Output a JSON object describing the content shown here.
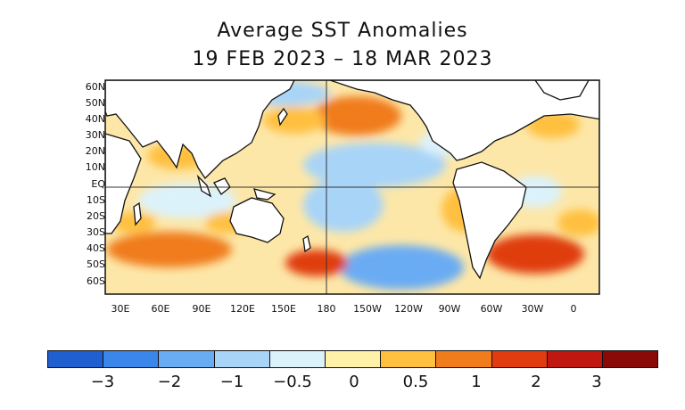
{
  "title": {
    "line1": "Average SST Anomalies",
    "line2": "19 FEB 2023 – 18 MAR 2023"
  },
  "map": {
    "lat_labels": [
      "60N",
      "50N",
      "40N",
      "30N",
      "20N",
      "10N",
      "EQ",
      "10S",
      "20S",
      "30S",
      "40S",
      "50S",
      "60S"
    ],
    "lon_labels": [
      "30E",
      "60E",
      "90E",
      "120E",
      "150E",
      "180",
      "150W",
      "120W",
      "90W",
      "60W",
      "30W",
      "0"
    ],
    "land_color": "#ffffff"
  },
  "colorbar": {
    "colors": [
      "#1f5fd0",
      "#3a86ea",
      "#6aacf3",
      "#a8d4f8",
      "#dcf2fb",
      "#fff2a8",
      "#ffc040",
      "#f07c1c",
      "#e03c10",
      "#c01810",
      "#8a0a08"
    ],
    "labels": [
      "−3",
      "−2",
      "−1",
      "−0.5",
      "0",
      "0.5",
      "1",
      "2",
      "3"
    ]
  }
}
